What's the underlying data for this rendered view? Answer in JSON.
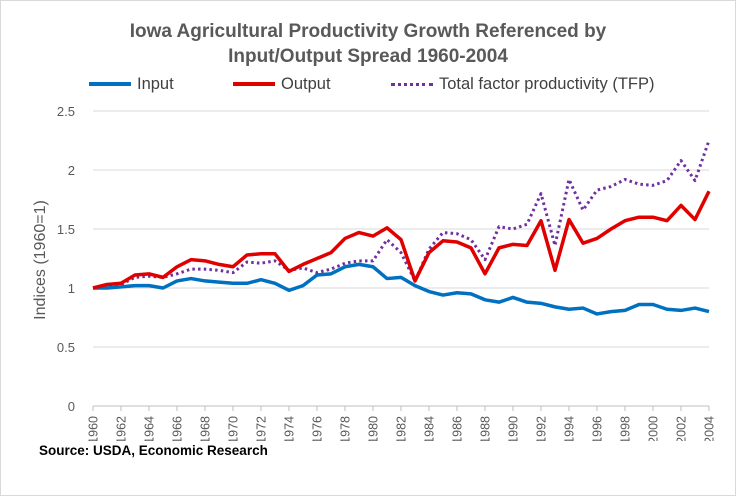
{
  "chart_data": {
    "type": "line",
    "title_lines": [
      "Iowa Agricultural Productivity Growth Referenced by",
      "Input/Output  Spread 1960-2004"
    ],
    "ylabel": "Indices (1960=1)",
    "xlabel": "",
    "source": "Source: USDA, Economic Research",
    "ylim": [
      0,
      2.5
    ],
    "yticks": [
      "0",
      "0.5",
      "1",
      "1.5",
      "2",
      "2.5"
    ],
    "xlim": [
      1960,
      2004
    ],
    "xticks": [
      "1960",
      "1962",
      "1964",
      "1966",
      "1968",
      "1970",
      "1972",
      "1974",
      "1976",
      "1978",
      "1980",
      "1982",
      "1984",
      "1986",
      "1988",
      "1990",
      "1992",
      "1994",
      "1996",
      "1998",
      "2000",
      "2002",
      "2004"
    ],
    "grid": "horizontal",
    "legend_position": "top",
    "x": [
      1960,
      1961,
      1962,
      1963,
      1964,
      1965,
      1966,
      1967,
      1968,
      1969,
      1970,
      1971,
      1972,
      1973,
      1974,
      1975,
      1976,
      1977,
      1978,
      1979,
      1980,
      1981,
      1982,
      1983,
      1984,
      1985,
      1986,
      1987,
      1988,
      1989,
      1990,
      1991,
      1992,
      1993,
      1994,
      1995,
      1996,
      1997,
      1998,
      1999,
      2000,
      2001,
      2002,
      2003,
      2004
    ],
    "series": [
      {
        "name": "Input",
        "color": "#0070c0",
        "style": "solid",
        "values": [
          1.0,
          1.0,
          1.01,
          1.02,
          1.02,
          1.0,
          1.06,
          1.08,
          1.06,
          1.05,
          1.04,
          1.04,
          1.07,
          1.04,
          0.98,
          1.02,
          1.11,
          1.12,
          1.18,
          1.2,
          1.18,
          1.08,
          1.09,
          1.02,
          0.97,
          0.94,
          0.96,
          0.95,
          0.9,
          0.88,
          0.92,
          0.88,
          0.87,
          0.84,
          0.82,
          0.83,
          0.78,
          0.8,
          0.81,
          0.86,
          0.86,
          0.82,
          0.81,
          0.83,
          0.8
        ]
      },
      {
        "name": "Output",
        "color": "#e00000",
        "style": "solid",
        "values": [
          1.0,
          1.03,
          1.04,
          1.11,
          1.12,
          1.09,
          1.18,
          1.24,
          1.23,
          1.2,
          1.18,
          1.28,
          1.29,
          1.29,
          1.14,
          1.2,
          1.25,
          1.3,
          1.42,
          1.47,
          1.44,
          1.51,
          1.41,
          1.06,
          1.3,
          1.4,
          1.39,
          1.34,
          1.12,
          1.34,
          1.37,
          1.36,
          1.57,
          1.15,
          1.58,
          1.38,
          1.42,
          1.5,
          1.57,
          1.6,
          1.6,
          1.57,
          1.7,
          1.58,
          1.82
        ]
      },
      {
        "name": "Total factor productivity (TFP)",
        "color": "#7030a0",
        "style": "dotted",
        "values": [
          1.0,
          1.01,
          1.03,
          1.09,
          1.1,
          1.09,
          1.12,
          1.16,
          1.16,
          1.15,
          1.13,
          1.22,
          1.21,
          1.23,
          1.15,
          1.17,
          1.13,
          1.16,
          1.21,
          1.23,
          1.23,
          1.41,
          1.3,
          1.06,
          1.33,
          1.47,
          1.46,
          1.41,
          1.24,
          1.52,
          1.5,
          1.54,
          1.8,
          1.36,
          1.92,
          1.66,
          1.83,
          1.86,
          1.92,
          1.88,
          1.87,
          1.91,
          2.08,
          1.91,
          2.25
        ]
      }
    ]
  }
}
